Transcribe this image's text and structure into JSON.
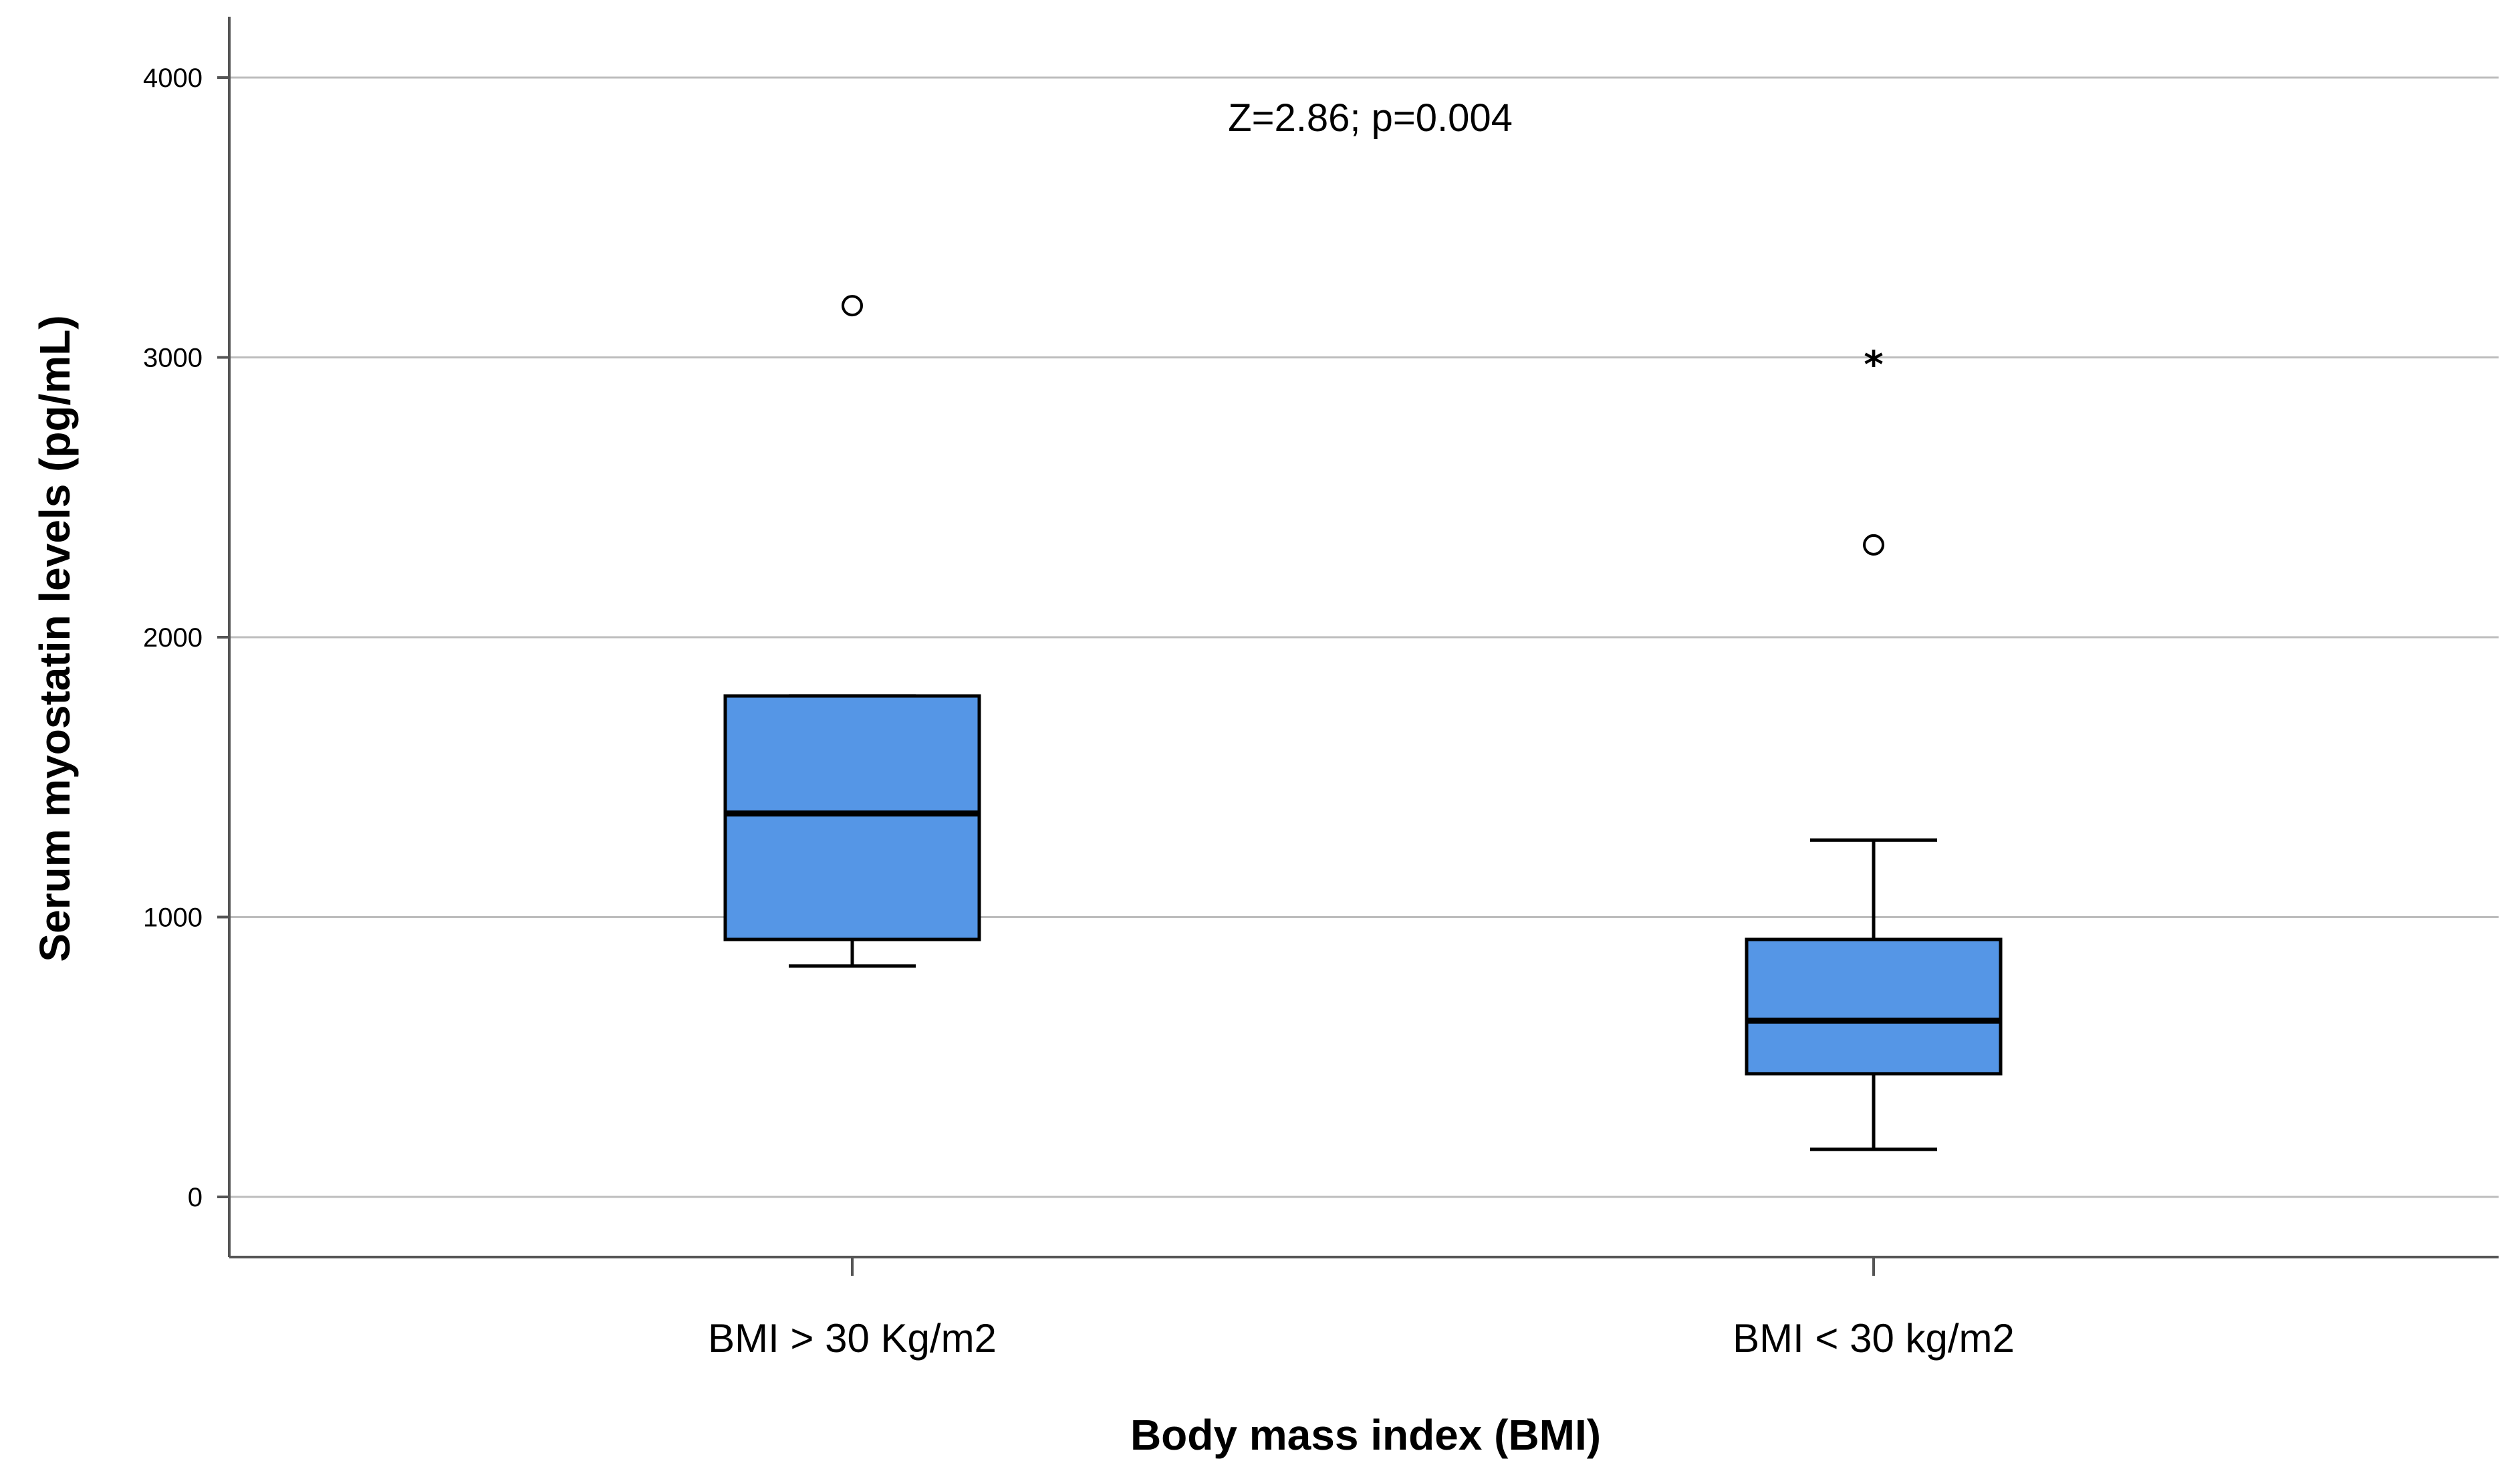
{
  "chart_data": {
    "type": "boxplot",
    "xlabel": "Body mass index (BMI)",
    "ylabel": "Serum myostatin levels (pg/mL)",
    "ylim": [
      -220,
      4220
    ],
    "yticks": [
      0,
      1000,
      2000,
      3000,
      4000
    ],
    "grid": true,
    "annotation": "Z=2.86; p=0.004",
    "box_color": "#5596e6",
    "categories": [
      "BMI > 30 Kg/m2",
      "BMI < 30 kg/m2"
    ],
    "boxes": [
      {
        "category": "BMI > 30 Kg/m2",
        "whisker_low": 825,
        "q1": 920,
        "median": 1370,
        "q3": 1790,
        "whisker_high": 1790,
        "outliers": [
          3185
        ],
        "extremes": []
      },
      {
        "category": "BMI < 30 kg/m2",
        "whisker_low": 170,
        "q1": 440,
        "median": 630,
        "q3": 920,
        "whisker_high": 1275,
        "outliers": [
          2330
        ],
        "extremes": [
          2995
        ]
      }
    ]
  }
}
